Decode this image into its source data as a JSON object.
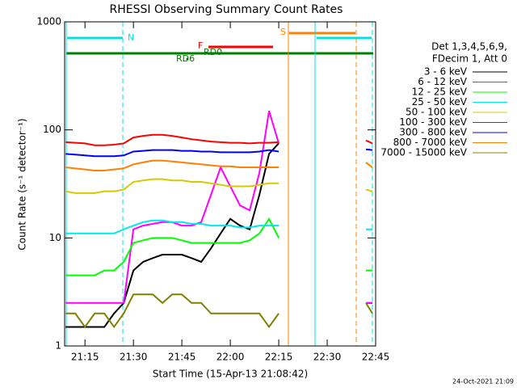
{
  "chart_data": {
    "type": "line",
    "title": "RHESSI Observing Summary Count Rates",
    "xlabel": "Start Time (15-Apr-13 21:08:42)",
    "ylabel": "Count Rate (s⁻¹ detector⁻¹)",
    "footer": "24-Oct-2021 21:09",
    "legend_header": [
      "Det 1,3,4,5,6,9,",
      "FDecim 1, Att 0"
    ],
    "annotations": [
      {
        "text": "N",
        "color": "#00e0e0"
      },
      {
        "text": "S",
        "color": "#ff8000"
      },
      {
        "text": "F",
        "color": "#ff0000"
      },
      {
        "text": "RD0",
        "color": "#008000"
      },
      {
        "text": "RD6",
        "color": "#008000"
      }
    ],
    "log_y": true,
    "xlim": [
      8.7,
      105
    ],
    "xticks": [
      {
        "value": 15,
        "label": "21:15"
      },
      {
        "value": 30,
        "label": "21:30"
      },
      {
        "value": 45,
        "label": "21:45"
      },
      {
        "value": 60,
        "label": "22:00"
      },
      {
        "value": 75,
        "label": "22:15"
      },
      {
        "value": 90,
        "label": "22:30"
      },
      {
        "value": 105,
        "label": "22:45"
      }
    ],
    "ylim": [
      1,
      1000
    ],
    "yticks": [
      1,
      10,
      100,
      1000
    ],
    "x": [
      9,
      12,
      15,
      18,
      21,
      24,
      27,
      30,
      33,
      36,
      39,
      42,
      45,
      48,
      51,
      54,
      57,
      60,
      63,
      66,
      69,
      72,
      75,
      89,
      102,
      104
    ],
    "series": [
      {
        "name": "3 - 6 keV",
        "color": "#000000",
        "values": [
          1.5,
          1.5,
          1.5,
          1.5,
          1.5,
          2,
          2.5,
          5,
          6,
          6.5,
          7,
          7,
          7,
          6.5,
          6,
          8,
          11,
          15,
          13,
          12,
          25,
          60,
          75,
          null,
          2.5,
          2.5
        ]
      },
      {
        "name": "6 - 12 keV",
        "color": "#ff00ff",
        "values": [
          2.5,
          2.5,
          2.5,
          2.5,
          2.5,
          2.5,
          2.5,
          12,
          13,
          13.5,
          14,
          14,
          13,
          13,
          14,
          25,
          45,
          30,
          20,
          18,
          40,
          150,
          75,
          null,
          2.5,
          2.5
        ]
      },
      {
        "name": "12 - 25 keV",
        "color": "#00ff00",
        "values": [
          4.5,
          4.5,
          4.5,
          4.5,
          5,
          5,
          6,
          9,
          9.5,
          10,
          10,
          10,
          9.5,
          9,
          9,
          9,
          9,
          9,
          9,
          9.5,
          11,
          15,
          10,
          null,
          5,
          5
        ]
      },
      {
        "name": "25 - 50 keV",
        "color": "#00e8e8",
        "values": [
          11,
          11,
          11,
          11,
          11,
          11,
          12,
          13,
          14,
          14.5,
          14.5,
          14,
          14,
          13.5,
          13.5,
          13,
          13,
          13,
          12.5,
          12.5,
          13,
          13,
          13,
          null,
          12,
          12
        ]
      },
      {
        "name": "50 - 100 keV",
        "color": "#d8c800",
        "values": [
          27,
          26,
          26,
          26,
          27,
          27,
          28,
          33,
          34,
          35,
          35,
          34,
          34,
          33,
          33,
          32,
          31,
          30,
          30,
          30,
          31,
          32,
          32,
          null,
          28,
          27
        ]
      },
      {
        "name": "100 - 300 keV",
        "color": "#ff0000",
        "values": [
          77,
          76,
          75,
          72,
          72,
          73,
          75,
          85,
          88,
          90,
          90,
          88,
          85,
          82,
          80,
          78,
          77,
          76,
          76,
          75,
          76,
          76,
          77,
          null,
          80,
          75
        ]
      },
      {
        "name": "300 - 800 keV",
        "color": "#0000ff",
        "values": [
          60,
          59,
          58,
          57,
          57,
          57,
          58,
          63,
          64,
          65,
          65,
          65,
          64,
          64,
          63,
          63,
          62,
          62,
          62,
          62,
          63,
          65,
          63,
          null,
          66,
          65
        ]
      },
      {
        "name": "800 - 7000 keV",
        "color": "#ff8000",
        "values": [
          45,
          44,
          43,
          42,
          42,
          43,
          44,
          48,
          50,
          52,
          52,
          51,
          50,
          49,
          48,
          47,
          46,
          46,
          45,
          45,
          45,
          45,
          45,
          null,
          50,
          45
        ]
      },
      {
        "name": "7000 - 15000 keV",
        "color": "#808000",
        "values": [
          2,
          2,
          1.5,
          2,
          2,
          1.5,
          2,
          3,
          3,
          3,
          2.5,
          3,
          3,
          2.5,
          2.5,
          2,
          2,
          2,
          2,
          2,
          2,
          1.5,
          2,
          null,
          2.5,
          2
        ]
      }
    ]
  }
}
